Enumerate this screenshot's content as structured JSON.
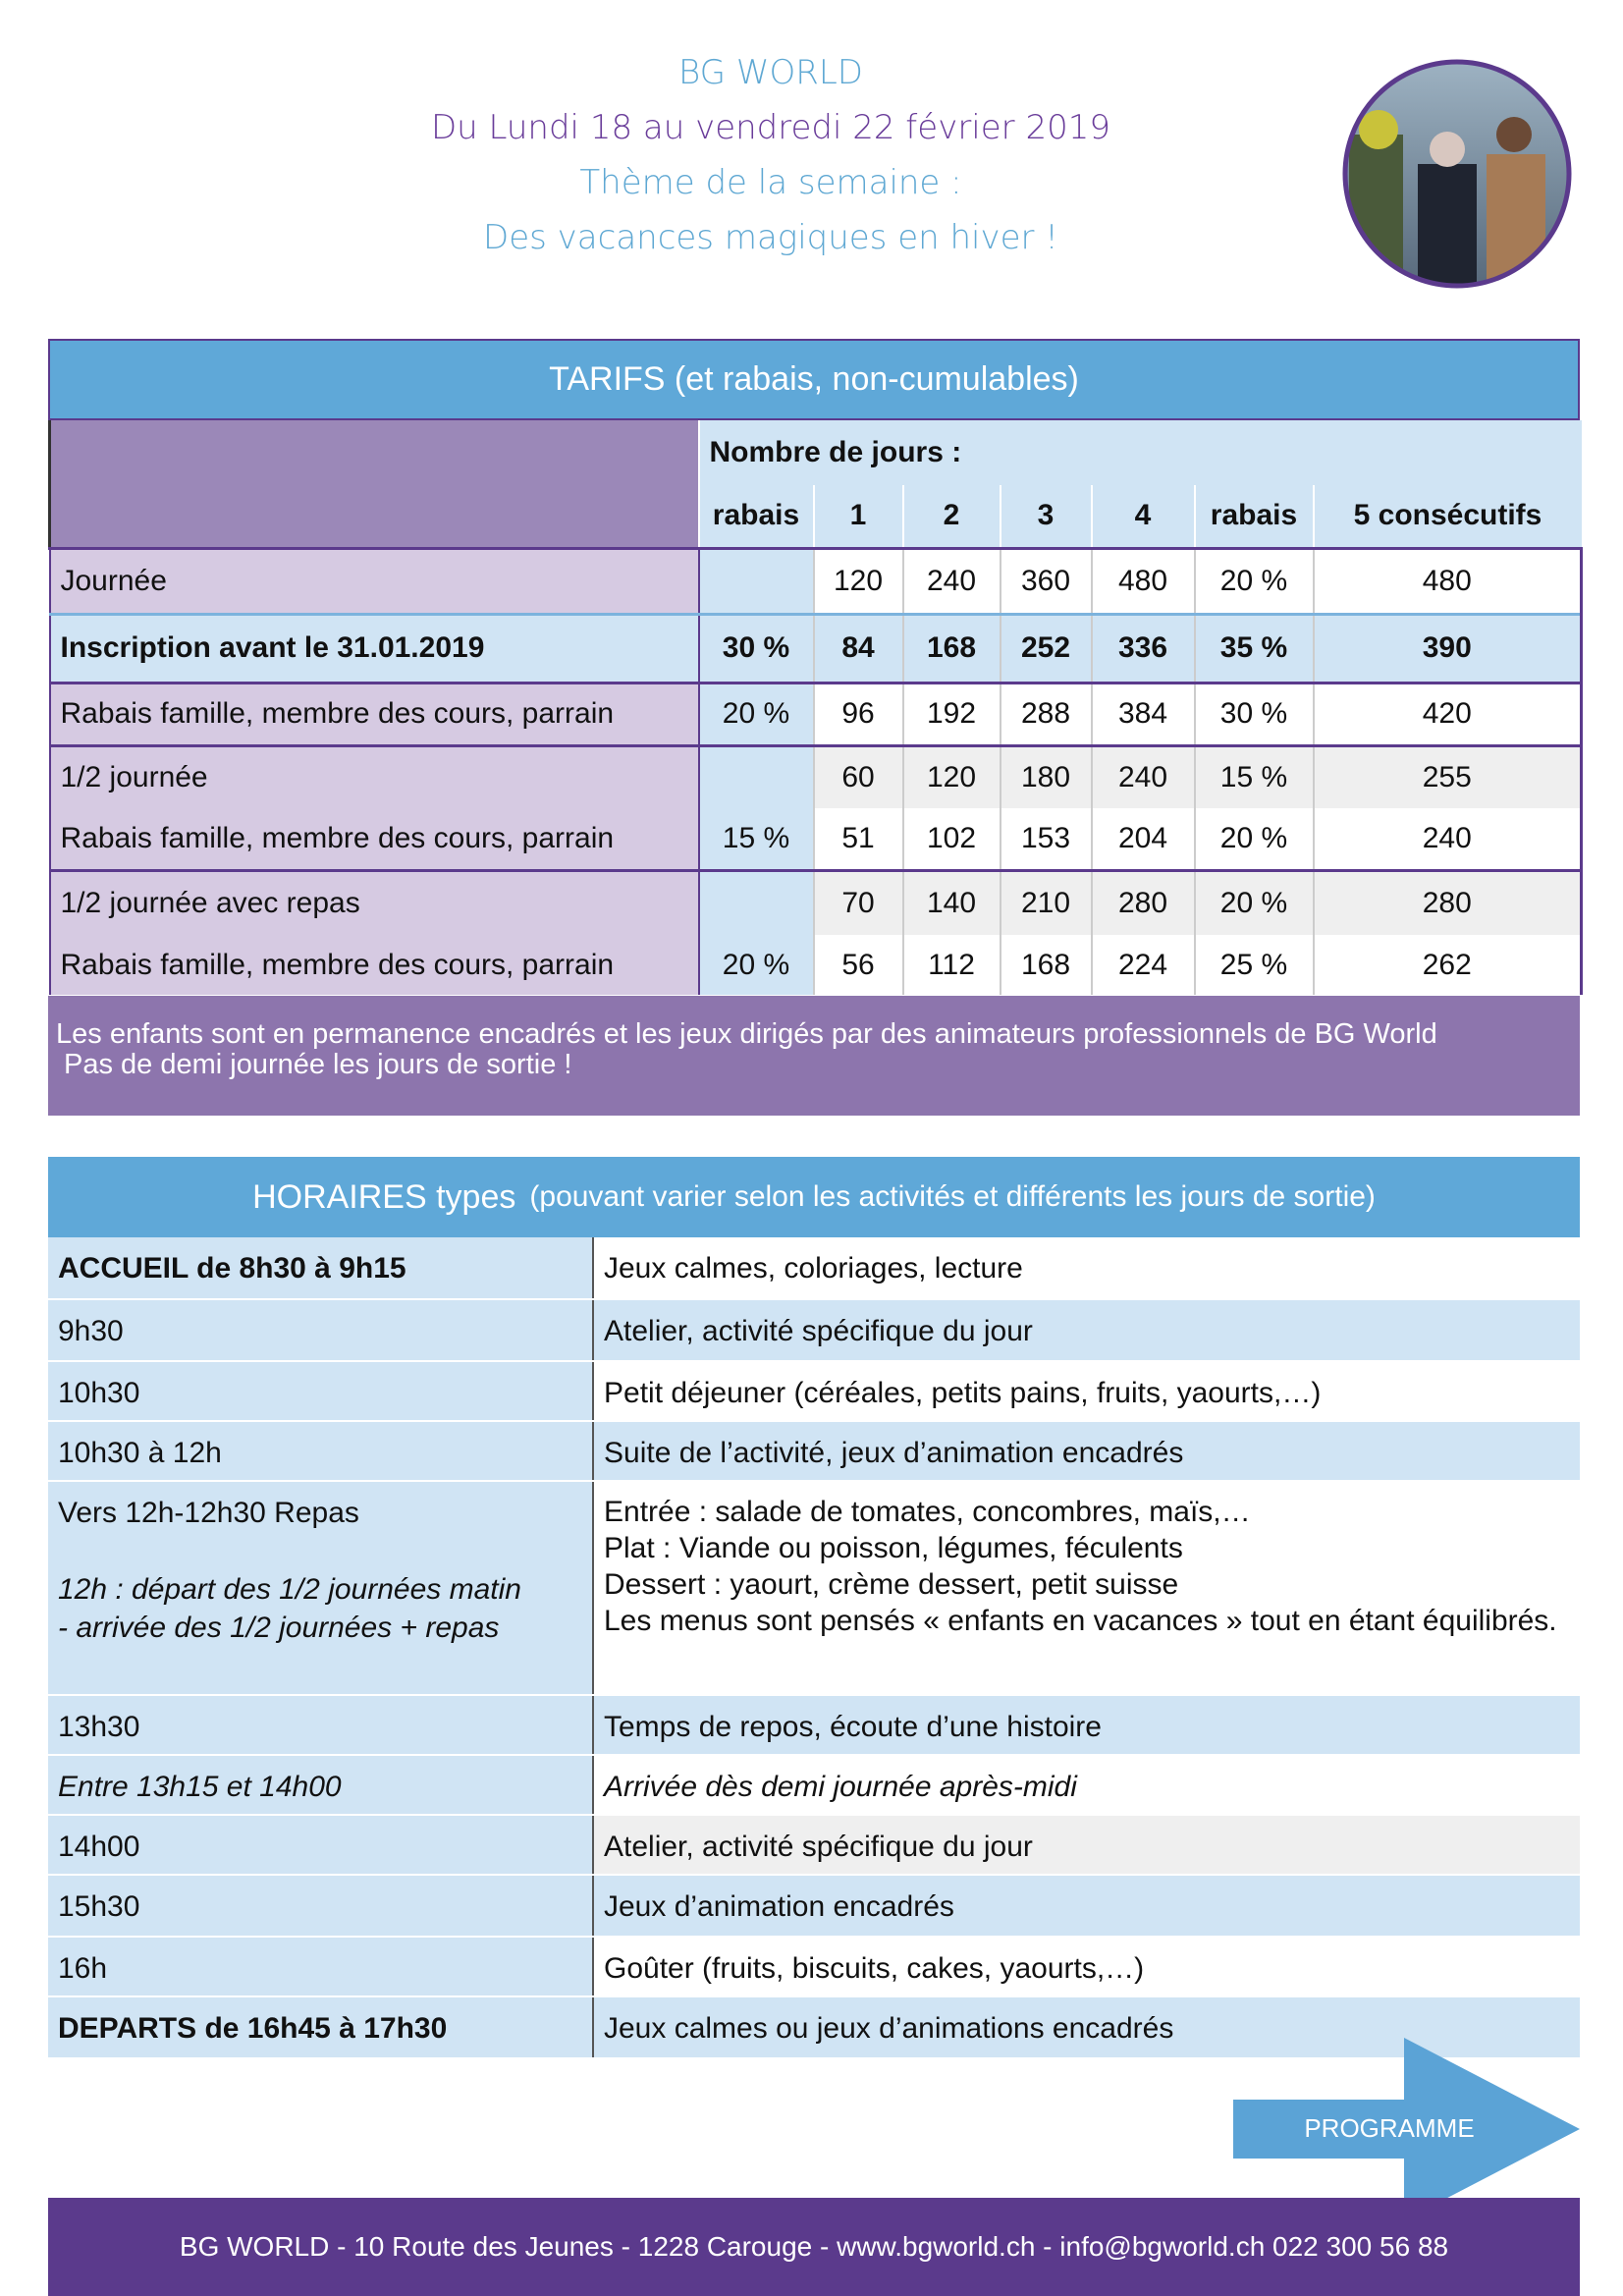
{
  "header": {
    "lines": [
      "BG WORLD",
      "Du Lundi 18 au vendredi 22 février 2019",
      "Thème de la semaine :",
      "Des vacances magiques en hiver !"
    ]
  },
  "tarifs": {
    "title": "TARIFS (et rabais, non-cumulables)",
    "group_header": "Nombre de jours :",
    "columns": [
      "rabais",
      "1",
      "2",
      "3",
      "4",
      "rabais",
      "5 consécutifs"
    ],
    "rows": [
      {
        "label": "Journée",
        "cells": [
          null,
          "120",
          "240",
          "360",
          "480",
          "20 %",
          "480"
        ]
      },
      {
        "label": "Inscription avant le 31.01.2019",
        "cells": [
          "30 %",
          "84",
          "168",
          "252",
          "336",
          "35 %",
          "390"
        ]
      },
      {
        "label": "Rabais famille, membre des cours, parrain",
        "cells": [
          "20 %",
          "96",
          "192",
          "288",
          "384",
          "30 %",
          "420"
        ]
      },
      {
        "label": "1/2 journée",
        "cells": [
          null,
          "60",
          "120",
          "180",
          "240",
          "15 %",
          "255"
        ]
      },
      {
        "label": "Rabais famille, membre des cours, parrain",
        "cells": [
          "15 %",
          "51",
          "102",
          "153",
          "204",
          "20 %",
          "240"
        ]
      },
      {
        "label": "1/2 journée avec repas",
        "cells": [
          null,
          "70",
          "140",
          "210",
          "280",
          "20 %",
          "280"
        ]
      },
      {
        "label": "Rabais famille, membre des cours, parrain",
        "cells": [
          "20 %",
          "56",
          "112",
          "168",
          "224",
          "25 %",
          "262"
        ]
      }
    ],
    "note": [
      "Les enfants sont en permanence encadrés et les jeux dirigés par des animateurs professionnels de BG World",
      "Pas de demi journée les jours de sortie !"
    ]
  },
  "horaires": {
    "title": "HORAIRES types",
    "subtitle": "(pouvant varier selon les activités et différents les jours de sortie)",
    "rows": [
      {
        "left": [
          "ACCUEIL de 8h30 à 9h15"
        ],
        "right": [
          "Jeux calmes, coloriages, lecture"
        ]
      },
      {
        "left": [
          "9h30"
        ],
        "right": [
          "Atelier, activité spécifique du jour"
        ]
      },
      {
        "left": [
          "10h30"
        ],
        "right": [
          "Petit déjeuner (céréales, petits pains, fruits, yaourts,…)"
        ]
      },
      {
        "left": [
          "10h30 à 12h"
        ],
        "right": [
          "Suite de l’activité, jeux d’animation encadrés"
        ]
      },
      {
        "left": [
          "Vers 12h-12h30 Repas",
          "12h : départ des 1/2 journées matin",
          "- arrivée des 1/2 journées + repas"
        ],
        "right": [
          "Entrée : salade de tomates, concombres, maïs,…",
          "Plat : Viande ou poisson, légumes, féculents",
          "Dessert : yaourt, crème dessert, petit suisse",
          "Les menus sont pensés « enfants en vacances » tout en étant équilibrés."
        ]
      },
      {
        "left": [
          "13h30"
        ],
        "right": [
          "Temps de repos, écoute d’une histoire"
        ]
      },
      {
        "left": [
          "Entre 13h15 et 14h00"
        ],
        "right": [
          "Arrivée dès demi journée après-midi"
        ]
      },
      {
        "left": [
          "14h00"
        ],
        "right": [
          "Atelier, activité spécifique du jour"
        ]
      },
      {
        "left": [
          "15h30"
        ],
        "right": [
          "Jeux d’animation encadrés"
        ]
      },
      {
        "left": [
          "16h"
        ],
        "right": [
          "Goûter (fruits, biscuits, cakes, yaourts,…)"
        ]
      },
      {
        "left": [
          "DEPARTS de 16h45 à 17h30"
        ],
        "right": [
          "Jeux calmes ou jeux d’animations encadrés"
        ]
      }
    ]
  },
  "button": "PROGRAMME",
  "footer": "BG WORLD - 10 Route des Jeunes - 1228 Carouge - www.bgworld.ch - info@bgworld.ch 022 300 56 88"
}
